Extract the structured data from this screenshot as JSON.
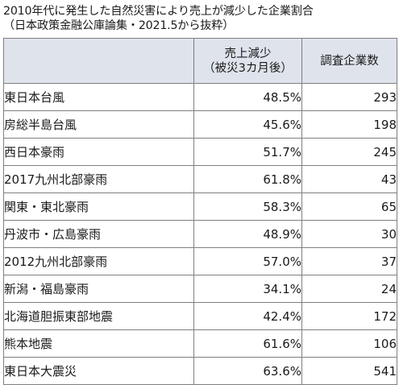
{
  "title": {
    "line1": "2010年代に発生した自然災害により売上が減少した企業割合",
    "line2": "（日本政策金融公庫論集・2021.5から抜粋）"
  },
  "table": {
    "headers": {
      "region": "",
      "pct_line1": "売上減少",
      "pct_line2": "（被災3カ月後）",
      "count": "調査企業数"
    },
    "rows": [
      {
        "region": "東日本台風",
        "pct": "48.5%",
        "count": "293"
      },
      {
        "region": "房総半島台風",
        "pct": "45.6%",
        "count": "198"
      },
      {
        "region": "西日本豪雨",
        "pct": "51.7%",
        "count": "245"
      },
      {
        "region": "2017九州北部豪雨",
        "pct": "61.8%",
        "count": "43"
      },
      {
        "region": "関東・東北豪雨",
        "pct": "58.3%",
        "count": "65"
      },
      {
        "region": "丹波市・広島豪雨",
        "pct": "48.9%",
        "count": "30"
      },
      {
        "region": "2012九州北部豪雨",
        "pct": "57.0%",
        "count": "37"
      },
      {
        "region": "新潟・福島豪雨",
        "pct": "34.1%",
        "count": "24"
      },
      {
        "region": "北海道胆振東部地震",
        "pct": "42.4%",
        "count": "172"
      },
      {
        "region": "熊本地震",
        "pct": "61.6%",
        "count": "106"
      },
      {
        "region": "東日本大震災",
        "pct": "63.6%",
        "count": "541"
      }
    ]
  },
  "colors": {
    "header_bg": "#dfe3ec",
    "border": "#7f7f7f"
  },
  "chart_data": {
    "type": "table",
    "title": "2010年代に発生した自然災害により売上が減少した企業割合",
    "subtitle": "（日本政策金融公庫論集・2021.5から抜粋）",
    "columns": [
      "",
      "売上減少（被災3カ月後）",
      "調査企業数"
    ],
    "categories": [
      "東日本台風",
      "房総半島台風",
      "西日本豪雨",
      "2017九州北部豪雨",
      "関東・東北豪雨",
      "丹波市・広島豪雨",
      "2012九州北部豪雨",
      "新潟・福島豪雨",
      "北海道胆振東部地震",
      "熊本地震",
      "東日本大震災"
    ],
    "series": [
      {
        "name": "売上減少（被災3カ月後）",
        "values": [
          48.5,
          45.6,
          51.7,
          61.8,
          58.3,
          48.9,
          57.0,
          34.1,
          42.4,
          61.6,
          63.6
        ]
      },
      {
        "name": "調査企業数",
        "values": [
          293,
          198,
          245,
          43,
          65,
          30,
          37,
          24,
          172,
          106,
          541
        ]
      }
    ]
  }
}
